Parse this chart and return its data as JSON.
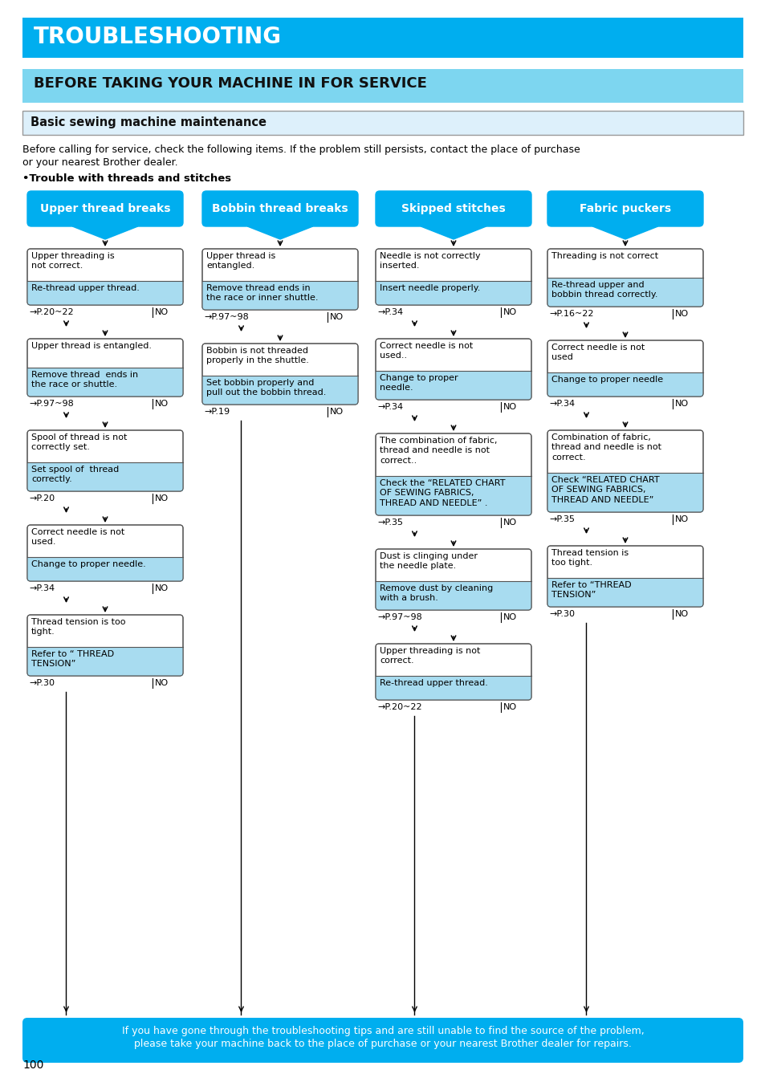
{
  "title": "TROUBLESHOOTING",
  "subtitle": "BEFORE TAKING YOUR MACHINE IN FOR SERVICE",
  "section": "Basic sewing machine maintenance",
  "intro": "Before calling for service, check the following items. If the problem still persists, contact the place of purchase\nor your nearest Brother dealer.",
  "bullet": "•Trouble with threads and stitches",
  "colors": {
    "title_bg": "#00AEEF",
    "subtitle_bg": "#7DD6F0",
    "section_bg": "#DDF0FB",
    "section_border": "#999999",
    "header_box": "#00AEEF",
    "box_bot": "#A8DCF0",
    "box_border": "#555555",
    "footer_bg": "#00AEEF",
    "page_bg": "#FFFFFF"
  },
  "columns": [
    {
      "header": "Upper thread breaks",
      "steps": [
        {
          "top": "Upper threading is\nnot correct.",
          "bot": "Re-thread upper thread.",
          "ref": "→P.20~22"
        },
        {
          "top": "Upper thread is entangled.",
          "bot": "Remove thread  ends in\nthe race or shuttle.",
          "ref": "→P.97~98"
        },
        {
          "top": "Spool of thread is not\ncorrectly set.",
          "bot": "Set spool of  thread\ncorrectly.",
          "ref": "→P.20"
        },
        {
          "top": "Correct needle is not\nused.",
          "bot": "Change to proper needle.",
          "ref": "→P.34"
        },
        {
          "top": "Thread tension is too\ntight.",
          "bot": "Refer to “ THREAD\nTENSION”",
          "ref": "→P.30"
        }
      ]
    },
    {
      "header": "Bobbin thread breaks",
      "steps": [
        {
          "top": "Upper thread is\nentangled.",
          "bot": "Remove thread ends in\nthe race or inner shuttle.",
          "ref": "→P.97~98"
        },
        {
          "top": "Bobbin is not threaded\nproperly in the shuttle.",
          "bot": "Set bobbin properly and\npull out the bobbin thread.",
          "ref": "→P.19"
        }
      ]
    },
    {
      "header": "Skipped stitches",
      "steps": [
        {
          "top": "Needle is not correctly\ninserted.",
          "bot": "Insert needle properly.",
          "ref": "→P.34"
        },
        {
          "top": "Correct needle is not\nused..",
          "bot": "Change to proper\nneedle.",
          "ref": "→P.34"
        },
        {
          "top": "The combination of fabric,\nthread and needle is not\ncorrect..",
          "bot": "Check the “RELATED CHART\nOF SEWING FABRICS,\nTHREAD AND NEEDLE” .",
          "ref": "→P.35"
        },
        {
          "top": "Dust is clinging under\nthe needle plate.",
          "bot": "Remove dust by cleaning\nwith a brush.",
          "ref": "→P.97~98"
        },
        {
          "top": "Upper threading is not\ncorrect.",
          "bot": "Re-thread upper thread.",
          "ref": "→P.20~22"
        }
      ]
    },
    {
      "header": "Fabric puckers",
      "steps": [
        {
          "top": "Threading is not correct",
          "bot": "Re-thread upper and\nbobbin thread correctly.",
          "ref": "→P.16~22"
        },
        {
          "top": "Correct needle is not\nused",
          "bot": "Change to proper needle",
          "ref": "→P.34"
        },
        {
          "top": "Combination of fabric,\nthread and needle is not\ncorrect.",
          "bot": "Check “RELATED CHART\nOF SEWING FABRICS,\nTHREAD AND NEEDLE”",
          "ref": "→P.35"
        },
        {
          "top": "Thread tension is\ntoo tight.",
          "bot": "Refer to “THREAD\nTENSION”",
          "ref": "→P.30"
        }
      ]
    }
  ],
  "footer": "If you have gone through the troubleshooting tips and are still unable to find the source of the problem,\nplease take your machine back to the place of purchase or your nearest Brother dealer for repairs.",
  "page_num": "100"
}
